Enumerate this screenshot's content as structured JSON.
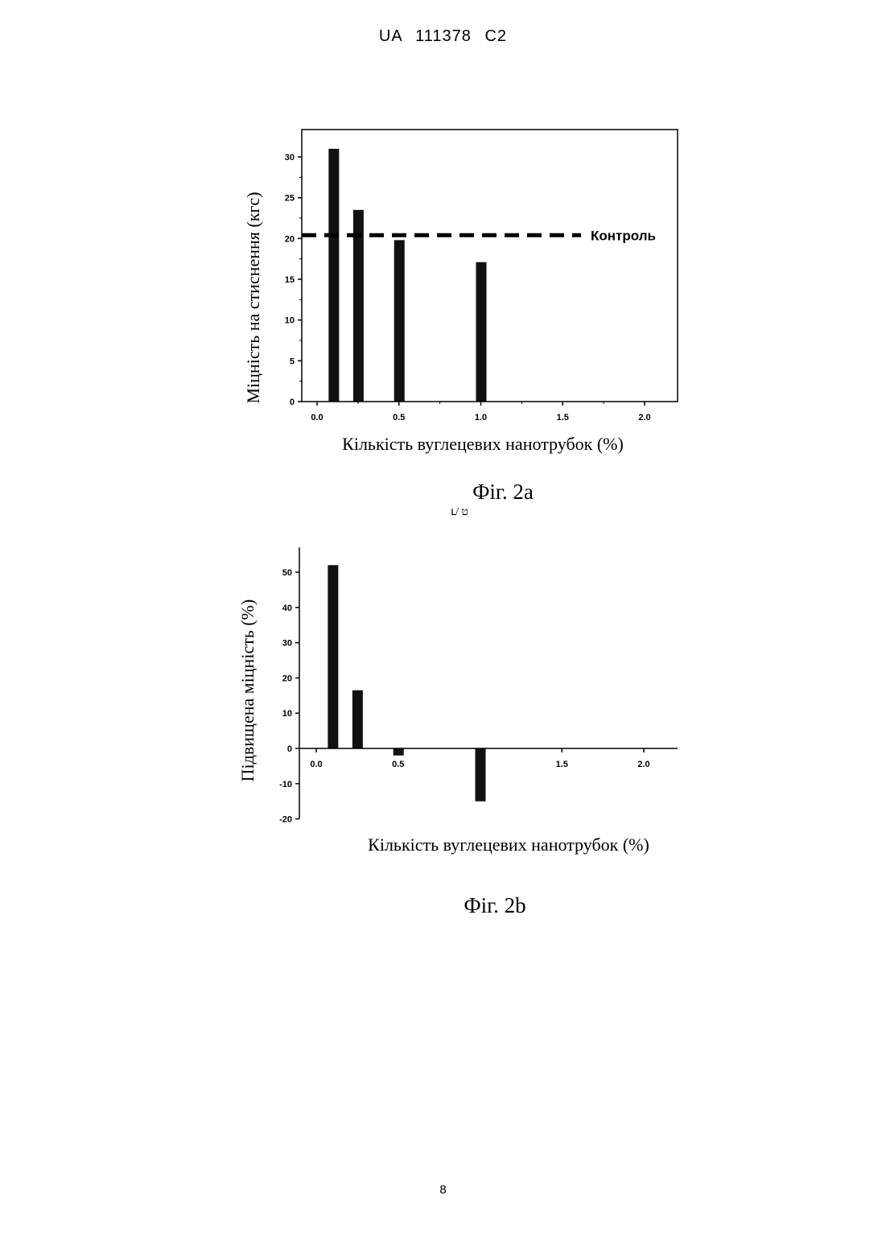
{
  "header": "UA 111378 C2",
  "page_number": "8",
  "stray_mark": "ւ/ ט",
  "chart_data": [
    {
      "type": "bar",
      "caption": "Фіг. 2а",
      "xlabel": "Кількість вуглецевих нанотрубок (%)",
      "ylabel": "Міцність на стиснення (кгс)",
      "xlim": [
        -0.1,
        2.2
      ],
      "ylim": [
        0,
        33
      ],
      "xticks": [
        "0.0",
        "0.5",
        "1.0",
        "1.5",
        "2.0"
      ],
      "yticks": [
        "0",
        "5",
        "10",
        "15",
        "20",
        "25",
        "30"
      ],
      "x": [
        0.1,
        0.25,
        0.5,
        1.0
      ],
      "values": [
        31,
        23.5,
        19.8,
        17.1
      ],
      "reference_line": {
        "label": "Контроль",
        "value": 20.4,
        "style": "dashed"
      },
      "colors": {
        "bar": "#111111"
      }
    },
    {
      "type": "bar",
      "caption": "Фіг. 2b",
      "xlabel": "Кількість вуглецевих нанотрубок (%)",
      "ylabel": "Підвищена міцність (%)",
      "xlim": [
        -0.1,
        2.2
      ],
      "ylim": [
        -20,
        57
      ],
      "xticks": [
        "0.0",
        "0.5",
        "1.5",
        "2.0"
      ],
      "yticks": [
        "-20",
        "-10",
        "0",
        "10",
        "20",
        "30",
        "40",
        "50"
      ],
      "x": [
        0.1,
        0.25,
        0.5,
        1.0
      ],
      "values": [
        52,
        16.5,
        -2,
        -15
      ],
      "colors": {
        "bar": "#111111"
      }
    }
  ]
}
